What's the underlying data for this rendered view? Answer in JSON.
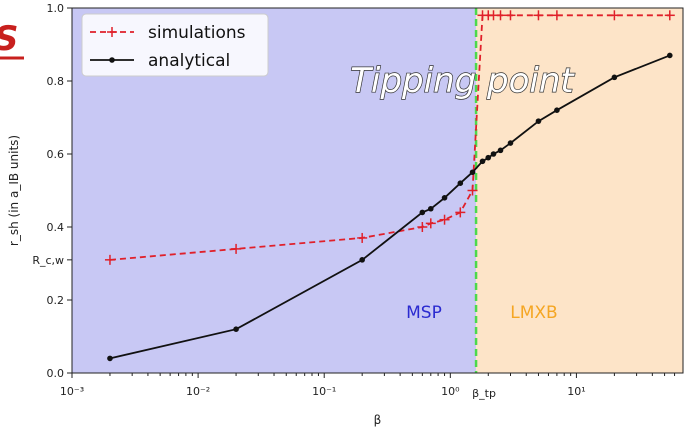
{
  "chart_data": {
    "type": "line",
    "title": "",
    "xlabel": "β",
    "ylabel": "r_sh (in a_IB units)",
    "xscale": "log",
    "xlim": [
      0.001,
      70
    ],
    "ylim": [
      0,
      1.0
    ],
    "x_ticks": [
      {
        "value": 0.001,
        "label": "10⁻³"
      },
      {
        "value": 0.01,
        "label": "10⁻²"
      },
      {
        "value": 0.1,
        "label": "10⁻¹"
      },
      {
        "value": 1,
        "label": "10⁰"
      },
      {
        "value": 10,
        "label": "10¹"
      }
    ],
    "y_ticks": [
      {
        "value": 0.0,
        "label": "0.0"
      },
      {
        "value": 0.2,
        "label": "0.2"
      },
      {
        "value": 0.4,
        "label": "0.4"
      },
      {
        "value": 0.6,
        "label": "0.6"
      },
      {
        "value": 0.8,
        "label": "0.8"
      },
      {
        "value": 1.0,
        "label": "1.0"
      }
    ],
    "extra_y_tick": {
      "value": 0.31,
      "label": "R_c,w"
    },
    "tipping_point": {
      "beta": 1.6,
      "label": "β_tp",
      "color": "#4cd94c"
    },
    "regions": [
      {
        "name": "MSP",
        "from": 0.001,
        "to": 1.6,
        "fill": "#c8c8f4",
        "label_color": "#2a2ad0"
      },
      {
        "name": "LMXB",
        "from": 1.6,
        "to": 70,
        "fill": "#fde4c8",
        "label_color": "#f5a623"
      }
    ],
    "series": [
      {
        "name": "simulations",
        "color": "#e0202a",
        "style": "dashed",
        "marker": "plus",
        "x": [
          0.002,
          0.02,
          0.2,
          0.6,
          0.7,
          0.9,
          1.2,
          1.5,
          1.8,
          2.0,
          2.2,
          2.5,
          3.0,
          5.0,
          7.0,
          20,
          55
        ],
        "y": [
          0.31,
          0.34,
          0.37,
          0.4,
          0.41,
          0.42,
          0.44,
          0.5,
          0.98,
          0.98,
          0.98,
          0.98,
          0.98,
          0.98,
          0.98,
          0.98,
          0.98
        ]
      },
      {
        "name": "analytical",
        "color": "#111111",
        "style": "solid",
        "marker": "dot",
        "x": [
          0.002,
          0.02,
          0.2,
          0.6,
          0.7,
          0.9,
          1.2,
          1.5,
          1.8,
          2.0,
          2.2,
          2.5,
          3.0,
          5.0,
          7.0,
          20,
          55
        ],
        "y": [
          0.04,
          0.12,
          0.31,
          0.44,
          0.45,
          0.48,
          0.52,
          0.55,
          0.58,
          0.59,
          0.6,
          0.61,
          0.63,
          0.69,
          0.72,
          0.81,
          0.87
        ]
      }
    ],
    "legend": {
      "placement": "top-left"
    },
    "annotations": {
      "tipping_text": "Tipping point",
      "corner_text": "S"
    }
  }
}
